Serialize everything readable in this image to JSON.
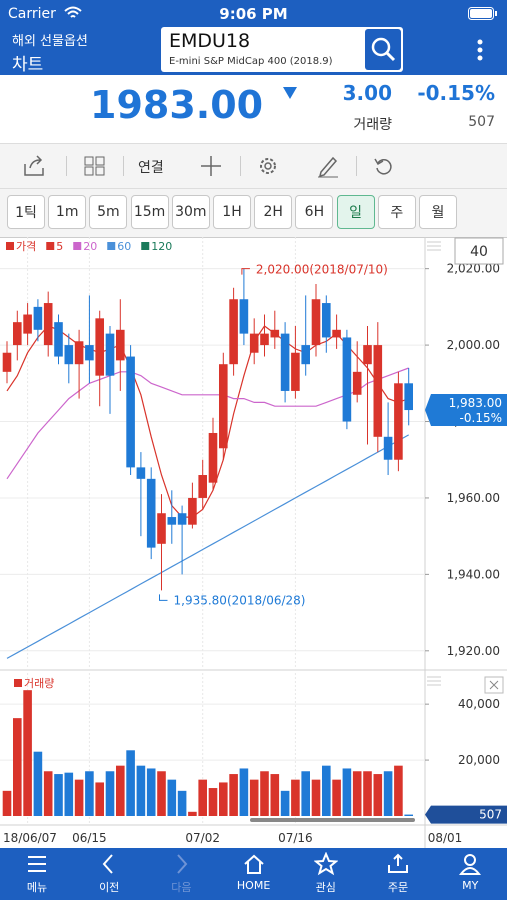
{
  "status_bar": {
    "carrier": "Carrier",
    "time": "9:06 PM"
  },
  "header": {
    "section": "해외 선물옵션",
    "title": "차트",
    "symbol": "EMDU18",
    "symbol_name": "E-mini S&P MidCap 400 (2018.9)"
  },
  "quote": {
    "price": "1983.00",
    "change": "3.00",
    "change_pct": "-0.15%",
    "volume_label": "거래량",
    "volume": "507"
  },
  "toolbar": {
    "link": "연결"
  },
  "timeframes": [
    "1틱",
    "1m",
    "5m",
    "15m",
    "30m",
    "1H",
    "2H",
    "6H",
    "일",
    "주",
    "월"
  ],
  "selected_timeframe": "일",
  "chart_data": [
    {
      "type": "candlestick",
      "name": "가격",
      "up_color": "#d9342b",
      "down_color": "#1f7ad6",
      "categories": [
        null,
        null,
        "18/06/07",
        null,
        null,
        null,
        null,
        null,
        "06/15",
        null,
        null,
        null,
        null,
        null,
        null,
        null,
        null,
        null,
        null,
        "07/02",
        null,
        null,
        null,
        null,
        null,
        null,
        null,
        null,
        "07/16",
        null,
        null,
        null,
        null,
        null,
        null,
        null,
        null,
        null,
        null,
        null
      ],
      "open": [
        1993,
        2000,
        2003,
        2010,
        2000,
        2006,
        2000,
        1995,
        2000,
        1992,
        2003,
        1996,
        1997,
        1968,
        1965,
        1948,
        1955,
        1956,
        1953,
        1960,
        1964,
        1973,
        1995,
        2012,
        1998,
        2000,
        2002,
        2003,
        1988,
        2000,
        2000,
        2011,
        2002,
        2002,
        1987,
        1995,
        1976,
        1976,
        1970,
        1990
      ],
      "high": [
        2001,
        2009,
        2011,
        2012,
        2014,
        2008,
        2003,
        2004,
        2013,
        2009,
        2005,
        2012,
        2000,
        1972,
        1968,
        1961,
        1962,
        1958,
        1964,
        1970,
        1981,
        1998,
        2015,
        2020,
        2007,
        2008,
        2009,
        2006,
        2005,
        2013,
        2016,
        2013,
        2008,
        2004,
        2001,
        2005,
        2006,
        1985,
        1993,
        1994
      ],
      "low": [
        1990,
        1996,
        2000,
        2001,
        1997,
        1995,
        1990,
        1986,
        1990,
        1984,
        1982,
        1988,
        1966,
        1950,
        1944,
        1935.8,
        1948,
        1940,
        1952,
        1957,
        1962,
        1970,
        1992,
        2000,
        1995,
        1997,
        1999,
        1985,
        1986,
        1992,
        1997,
        1998,
        1999,
        1978,
        1985,
        1974,
        1972,
        1966,
        1967,
        1979
      ],
      "close": [
        1998,
        2006,
        2008,
        2004,
        2011,
        1997,
        1995,
        2001,
        1996,
        2007,
        1992,
        2004,
        1968,
        1965,
        1947,
        1956,
        1953,
        1953,
        1960,
        1966,
        1977,
        1995,
        2012,
        2003,
        2003,
        2003,
        2004,
        1988,
        1998,
        1995,
        2012,
        2002,
        2004,
        1980,
        1993,
        2000,
        2000,
        1970,
        1990,
        1983
      ],
      "series": [
        {
          "name": "5",
          "color": "#d9342b",
          "values": [
            1988,
            1992,
            1998,
            2002,
            2005,
            2004,
            2002,
            2000,
            1999,
            1998,
            1999,
            2000,
            1994,
            1987,
            1976,
            1966,
            1958,
            1955,
            1955,
            1957,
            1962,
            1970,
            1982,
            1992,
            2001,
            2005,
            2003,
            2001,
            1999,
            1998,
            2000,
            2001,
            2003,
            2000,
            1997,
            1994,
            1990,
            1986,
            1985,
            1986
          ]
        },
        {
          "name": "20",
          "color": "#cc66cc",
          "values": [
            1965,
            1969,
            1973,
            1977,
            1980,
            1983,
            1986,
            1988,
            1990,
            1991,
            1992,
            1993,
            1993,
            1992,
            1990,
            1989,
            1988,
            1987,
            1987,
            1987,
            1987,
            1987,
            1986,
            1986,
            1985,
            1985,
            1984,
            1984,
            1984,
            1984,
            1984,
            1985,
            1986,
            1987,
            1988,
            1990,
            1991,
            1992,
            1993,
            1994
          ]
        },
        {
          "name": "60",
          "color": "#4a90d9",
          "values": [
            1918,
            1919.5,
            1921,
            1922.5,
            1924,
            1925.5,
            1927,
            1928.5,
            1930,
            1931.5,
            1933,
            1934.5,
            1936,
            1937.5,
            1939,
            1940.5,
            1942,
            1943.5,
            1945,
            1946.5,
            1948,
            1949.5,
            1951,
            1952.5,
            1954,
            1955.5,
            1957,
            1958.5,
            1960,
            1961.5,
            1963,
            1964.5,
            1966,
            1967.5,
            1969,
            1970.5,
            1972,
            1973.5,
            1975,
            1976.5
          ]
        },
        {
          "name": "120",
          "color": "#1a7a5a",
          "values": [
            null,
            null,
            null,
            null,
            null,
            null,
            null,
            null,
            null,
            null,
            null,
            null,
            null,
            null,
            null,
            null,
            null,
            null,
            null,
            null,
            null,
            null,
            null,
            null,
            null,
            null,
            null,
            null,
            null,
            null,
            null,
            null,
            null,
            null,
            null,
            null,
            null,
            null,
            null,
            null
          ]
        }
      ],
      "ylim": [
        1915.5,
        2027.5
      ],
      "yticks": [
        {
          "value": 1920,
          "label": "1,920.00"
        },
        {
          "value": 1940,
          "label": "1,940.00"
        },
        {
          "value": 1960,
          "label": "1,960.00"
        },
        {
          "value": 1980,
          "label": "1,980.00"
        },
        {
          "value": 2000,
          "label": "2,000.00"
        },
        {
          "value": 2020,
          "label": "2,020.00"
        }
      ],
      "high_annotation": "2,020.00(2018/07/10)",
      "low_annotation": "1,935.80(2018/06/28)",
      "last_label": "1,983.00",
      "last_change": "-0.15%",
      "period": "40",
      "future_label": "08/01",
      "grid": true
    },
    {
      "type": "bar",
      "title": "거래량",
      "values": [
        9000,
        35000,
        45000,
        23000,
        16000,
        15000,
        15500,
        13000,
        16000,
        12000,
        16000,
        18000,
        23500,
        18000,
        17000,
        16000,
        13000,
        9000,
        1500,
        13000,
        10000,
        12000,
        15000,
        17000,
        13000,
        16000,
        15000,
        9000,
        13000,
        16000,
        13000,
        18000,
        13000,
        17000,
        16000,
        16000,
        15000,
        16000,
        18000,
        507
      ],
      "ylim": [
        0,
        51500
      ],
      "yticks": [
        {
          "value": 20000,
          "label": "20,000"
        },
        {
          "value": 40000,
          "label": "40,000"
        }
      ],
      "grid": true
    }
  ],
  "tab_bar": [
    "메뉴",
    "이전",
    "다음",
    "HOME",
    "관심",
    "주문",
    "MY"
  ]
}
